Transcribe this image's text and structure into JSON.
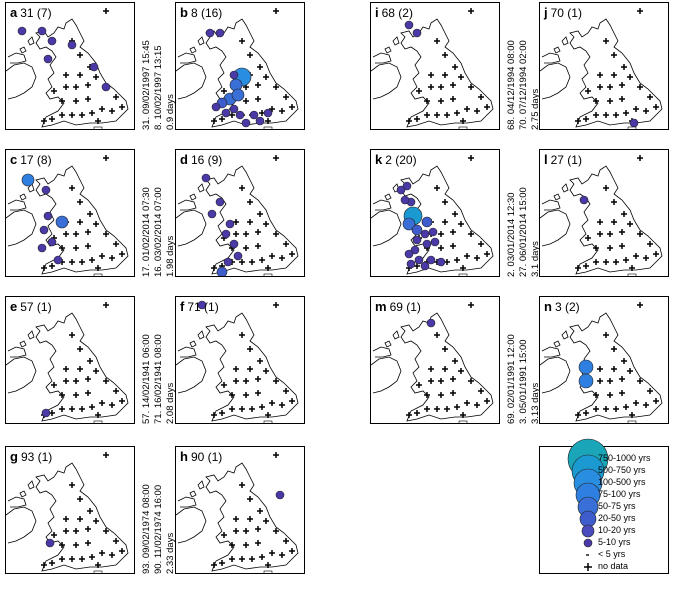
{
  "panels": [
    {
      "id": "a",
      "letter": "a",
      "count": "31 (7)",
      "col": 0,
      "row": 0,
      "caption": [
        "31. 09/02/1997 15:45",
        "8. 10/02/1997 13:15",
        "0.9 days"
      ]
    },
    {
      "id": "b",
      "letter": "b",
      "count": "8 (16)",
      "col": 1,
      "row": 0
    },
    {
      "id": "i",
      "letter": "i",
      "count": "68 (2)",
      "col": 2,
      "row": 0,
      "caption": [
        "68. 04/12/1994 08:00",
        "70. 07/12/1994 02:00",
        "2.75 days"
      ]
    },
    {
      "id": "j",
      "letter": "j",
      "count": "70 (1)",
      "col": 3,
      "row": 0
    },
    {
      "id": "c",
      "letter": "c",
      "count": "17 (8)",
      "col": 0,
      "row": 1,
      "caption": [
        "17. 01/02/2014 07:30",
        "16. 03/02/2014 07:00",
        "1.98 days"
      ]
    },
    {
      "id": "d",
      "letter": "d",
      "count": "16 (9)",
      "col": 1,
      "row": 1
    },
    {
      "id": "k",
      "letter": "k",
      "count": "2 (20)",
      "col": 2,
      "row": 1,
      "caption": [
        "2. 03/01/2014 12:30",
        "27. 06/01/2014 15:00",
        "3.1 days"
      ]
    },
    {
      "id": "l",
      "letter": "l",
      "count": "27 (1)",
      "col": 3,
      "row": 1
    },
    {
      "id": "e",
      "letter": "e",
      "count": "57 (1)",
      "col": 0,
      "row": 2,
      "caption": [
        "57. 14/02/1941 06:00",
        "71. 16/02/1941 08:00",
        "2.08 days"
      ]
    },
    {
      "id": "f",
      "letter": "f",
      "count": "71 (1)",
      "col": 1,
      "row": 2
    },
    {
      "id": "m",
      "letter": "m",
      "count": "69 (1)",
      "col": 2,
      "row": 2,
      "caption": [
        "69. 02/01/1991 12:00",
        "3. 05/01/1991 15:00",
        "3.13 days"
      ]
    },
    {
      "id": "n",
      "letter": "n",
      "count": "3 (2)",
      "col": 3,
      "row": 2
    },
    {
      "id": "g",
      "letter": "g",
      "count": "93 (1)",
      "col": 0,
      "row": 3,
      "caption": [
        "93. 09/02/1974 08:00",
        "90. 11/02/1974 16:00",
        "2.33 days"
      ]
    },
    {
      "id": "h",
      "letter": "h",
      "count": "90 (1)",
      "col": 1,
      "row": 3
    }
  ],
  "legend": {
    "items": [
      {
        "label": "750-1000 yrs",
        "color": "#1aa6b8"
      },
      {
        "label": "500-750 yrs",
        "color": "#1a9ad0"
      },
      {
        "label": "100-500 yrs",
        "color": "#2a8ee0"
      },
      {
        "label": "75-100 yrs",
        "color": "#2f7fe0"
      },
      {
        "label": "50-75 yrs",
        "color": "#3a6fd8"
      },
      {
        "label": "20-50 yrs",
        "color": "#3f5ccc"
      },
      {
        "label": "10-20 yrs",
        "color": "#4a4cbd"
      },
      {
        "label": "5-10 yrs",
        "color": "#4a3aa8"
      },
      {
        "label": "< 5 yrs",
        "color": "#555555"
      },
      {
        "label": "no data",
        "color": "#000000"
      }
    ]
  },
  "colors": {
    "marker": "#000000",
    "outline": "#000000"
  }
}
